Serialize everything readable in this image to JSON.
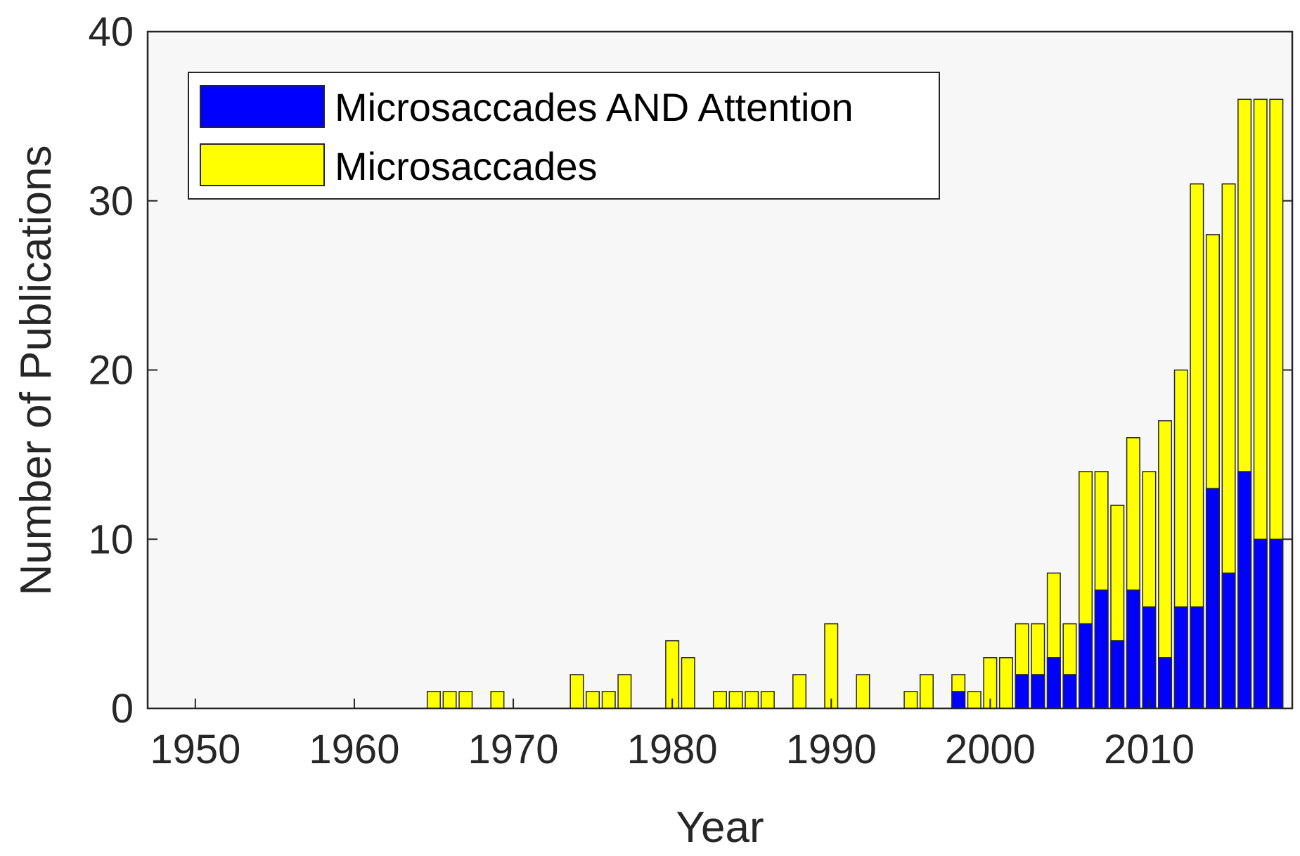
{
  "chart_data": {
    "type": "bar",
    "stacked": "overlay",
    "xlabel": "Year",
    "ylabel": "Number of Publications",
    "xlim": [
      1947,
      2019
    ],
    "ylim": [
      0,
      40
    ],
    "x_ticks": [
      1950,
      1960,
      1970,
      1980,
      1990,
      2000,
      2010
    ],
    "y_ticks": [
      0,
      10,
      20,
      30,
      40
    ],
    "grid": false,
    "legend_position": "top-left",
    "x": [
      1965,
      1966,
      1967,
      1969,
      1974,
      1975,
      1976,
      1977,
      1980,
      1981,
      1983,
      1984,
      1985,
      1986,
      1988,
      1990,
      1992,
      1995,
      1996,
      1998,
      1999,
      2000,
      2001,
      2002,
      2003,
      2004,
      2005,
      2006,
      2007,
      2008,
      2009,
      2010,
      2011,
      2012,
      2013,
      2014,
      2015,
      2016,
      2017,
      2018
    ],
    "series": [
      {
        "name": "Microsaccades",
        "color": "#ffff00",
        "values": [
          1,
          1,
          1,
          1,
          2,
          1,
          1,
          2,
          4,
          3,
          1,
          1,
          1,
          1,
          2,
          5,
          2,
          1,
          2,
          2,
          1,
          3,
          3,
          5,
          5,
          8,
          5,
          14,
          14,
          12,
          16,
          14,
          17,
          20,
          31,
          28,
          31,
          36,
          36,
          36
        ]
      },
      {
        "name": "Microsaccades AND Attention",
        "color": "#0000ff",
        "values": [
          0,
          0,
          0,
          0,
          0,
          0,
          0,
          0,
          0,
          0,
          0,
          0,
          0,
          0,
          0,
          0,
          0,
          0,
          0,
          1,
          0,
          0,
          0,
          2,
          2,
          3,
          2,
          5,
          7,
          4,
          7,
          6,
          3,
          6,
          6,
          13,
          8,
          14,
          10,
          10
        ]
      }
    ]
  },
  "legend": {
    "items": [
      {
        "label": "Microsaccades AND Attention",
        "color": "#0000ff"
      },
      {
        "label": "Microsaccades",
        "color": "#ffff00"
      }
    ]
  }
}
